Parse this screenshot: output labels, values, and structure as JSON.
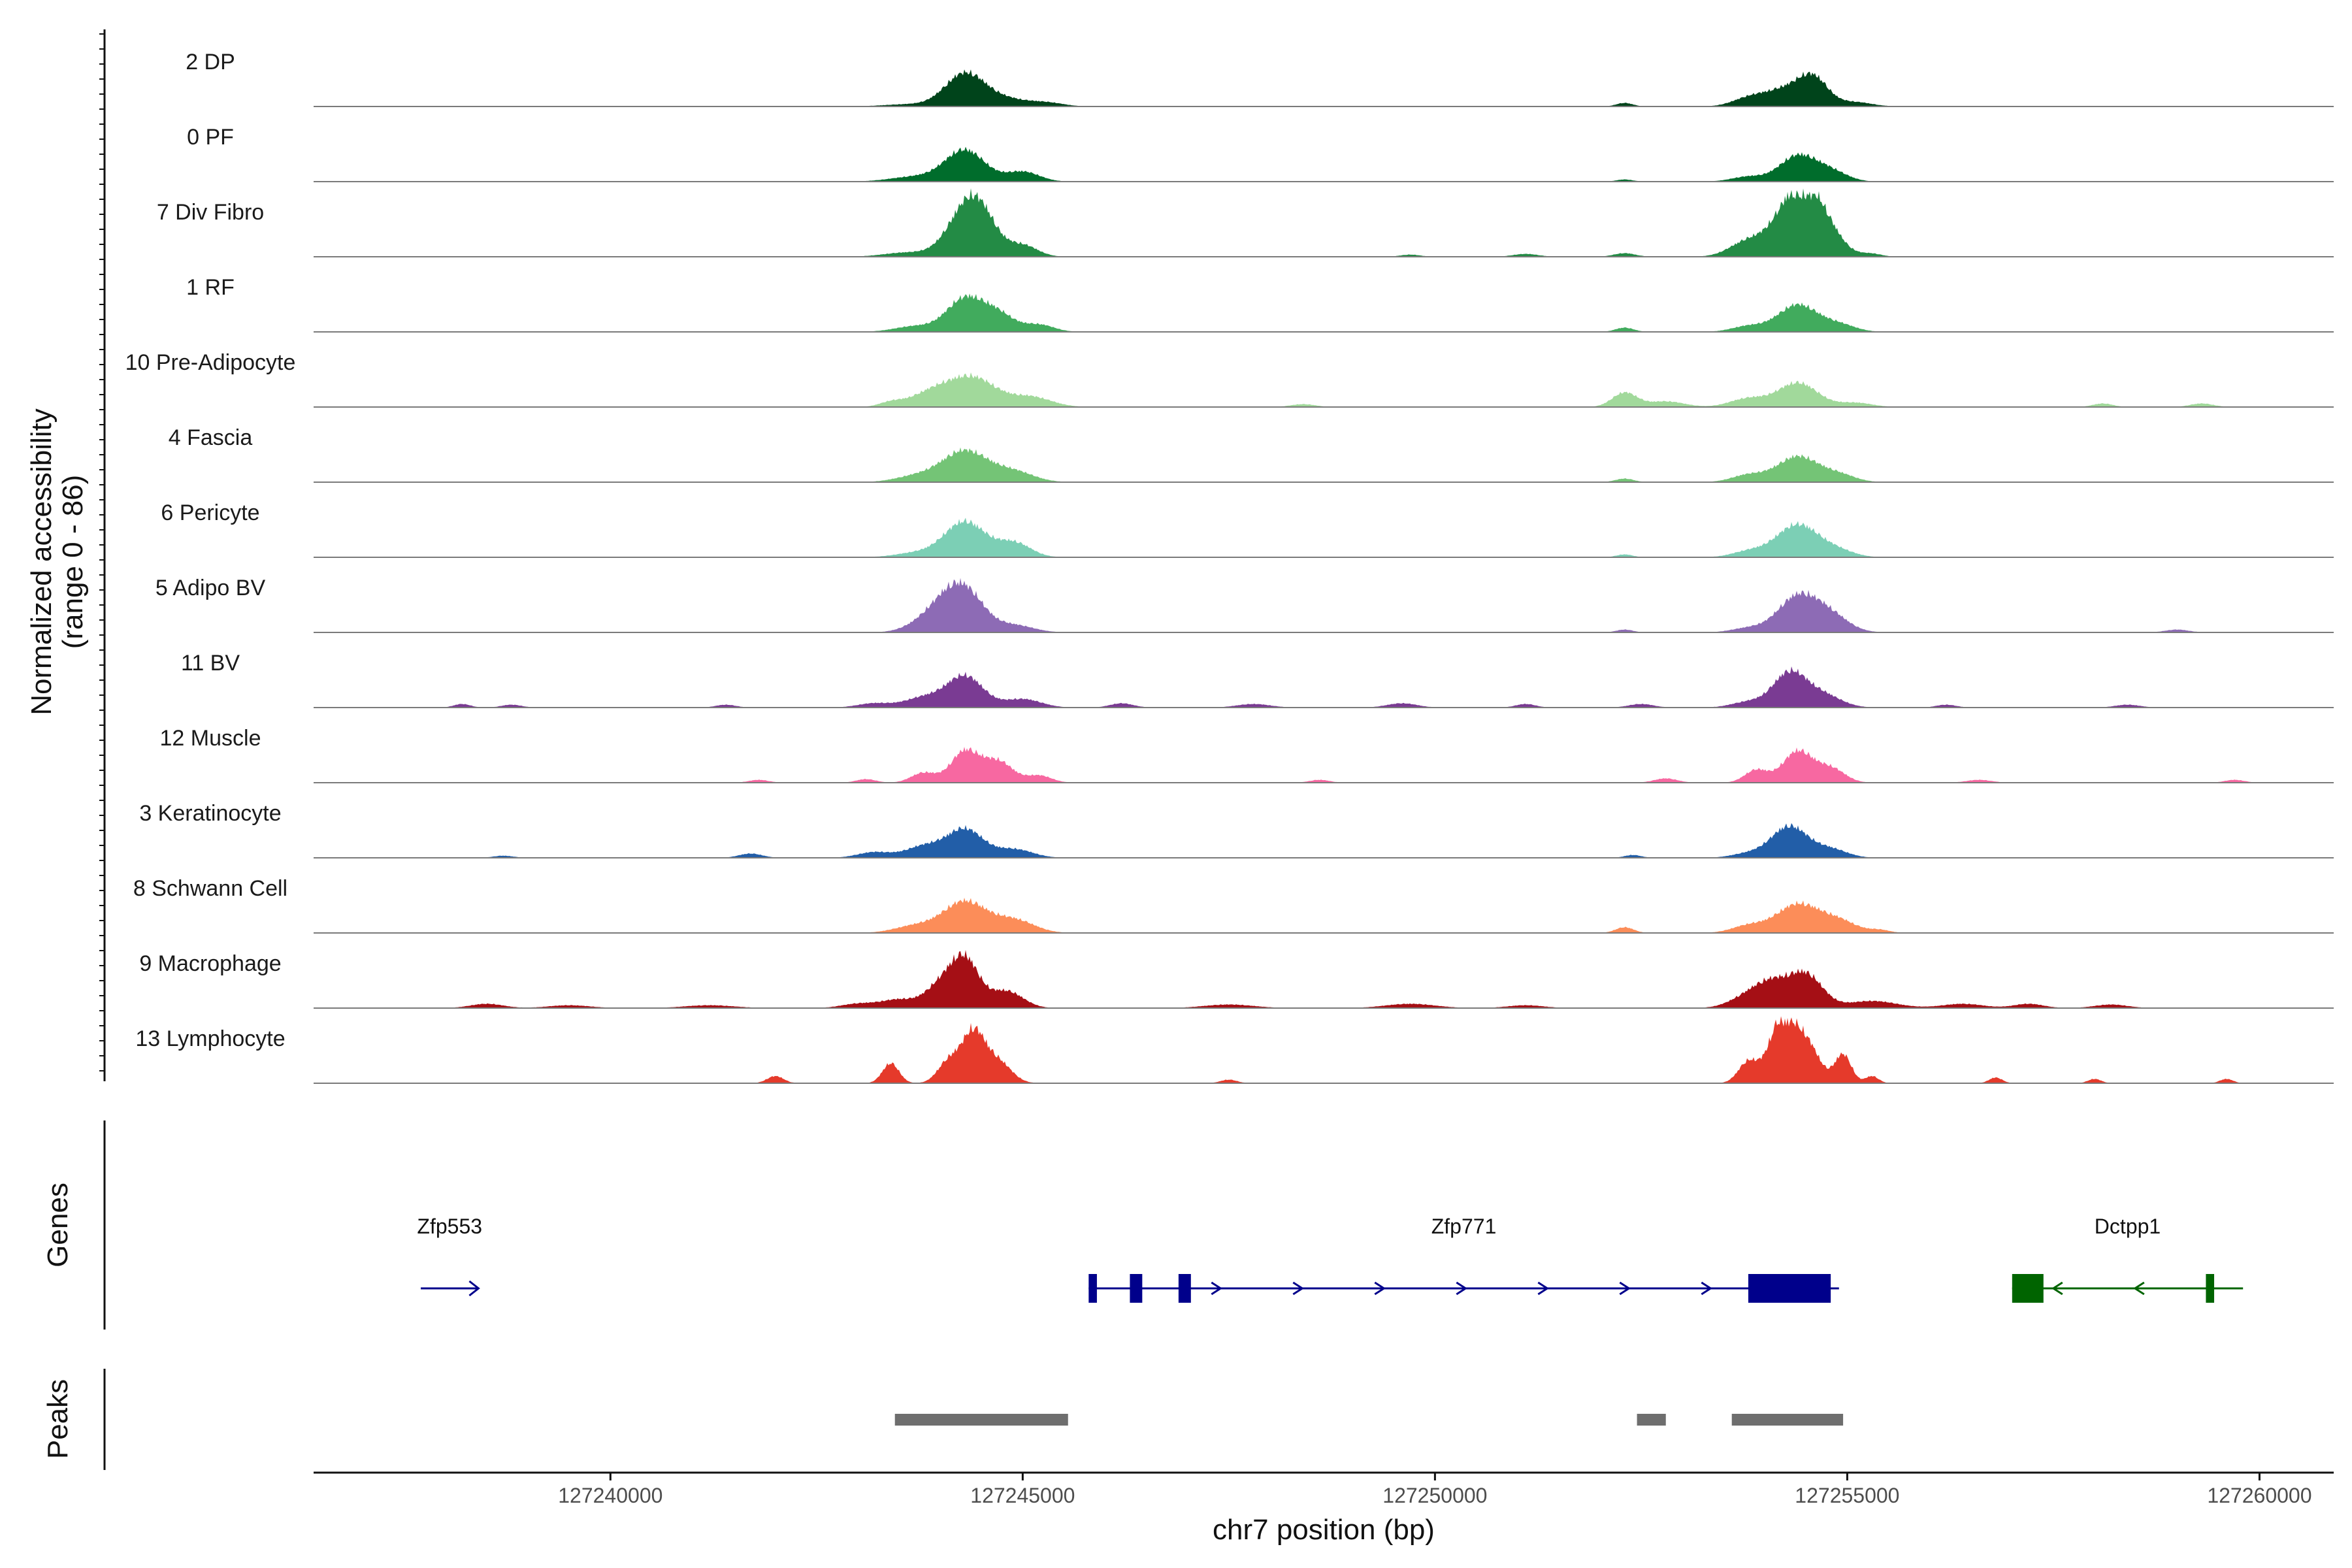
{
  "chart_data": {
    "type": "area",
    "title": "",
    "chromosome": "chr7",
    "xlabel": "chr7 position (bp)",
    "ylabel": "Normalized accessibility",
    "ylabel_range": "(range 0 - 86)",
    "xlim": [
      127236400,
      127260900
    ],
    "ylim": [
      0,
      86
    ],
    "x_ticks": [
      {
        "value": 127240000,
        "label": "127240000"
      },
      {
        "value": 127245000,
        "label": "127245000"
      },
      {
        "value": 127250000,
        "label": "127250000"
      },
      {
        "value": 127255000,
        "label": "127255000"
      },
      {
        "value": 127260000,
        "label": "127260000"
      }
    ],
    "series": [
      {
        "name": "2 DP",
        "color": "#00441b",
        "peaks": [
          [
            127244300,
            46,
            240
          ],
          [
            127244800,
            10,
            260
          ],
          [
            127245300,
            5,
            200
          ],
          [
            127243600,
            3,
            300
          ],
          [
            127252300,
            5,
            100
          ],
          [
            127254300,
            26,
            280
          ],
          [
            127254600,
            30,
            170
          ],
          [
            127253800,
            10,
            200
          ],
          [
            127255100,
            6,
            200
          ]
        ]
      },
      {
        "name": "0 PF",
        "color": "#006d2c",
        "peaks": [
          [
            127244300,
            44,
            240
          ],
          [
            127245000,
            14,
            200
          ],
          [
            127243700,
            7,
            300
          ],
          [
            127252300,
            3,
            100
          ],
          [
            127254400,
            36,
            220
          ],
          [
            127254800,
            14,
            200
          ],
          [
            127253800,
            7,
            200
          ]
        ]
      },
      {
        "name": "7 Div Fibro",
        "color": "#238b45",
        "peaks": [
          [
            127244300,
            56,
            230
          ],
          [
            127244500,
            40,
            200
          ],
          [
            127245000,
            16,
            180
          ],
          [
            127243600,
            6,
            280
          ],
          [
            127252300,
            5,
            130
          ],
          [
            127254300,
            56,
            220
          ],
          [
            127254600,
            70,
            240
          ],
          [
            127253800,
            22,
            220
          ],
          [
            127255300,
            4,
            120
          ],
          [
            127251100,
            4,
            150
          ],
          [
            127249700,
            3,
            120
          ]
        ]
      },
      {
        "name": "1 RF",
        "color": "#41ab5d",
        "peaks": [
          [
            127244300,
            46,
            220
          ],
          [
            127244700,
            24,
            200
          ],
          [
            127245200,
            10,
            180
          ],
          [
            127243700,
            8,
            250
          ],
          [
            127252300,
            6,
            110
          ],
          [
            127254400,
            38,
            240
          ],
          [
            127253800,
            8,
            200
          ],
          [
            127254900,
            10,
            200
          ]
        ]
      },
      {
        "name": "10 Pre-Adipocyte",
        "color": "#a1d99b",
        "peaks": [
          [
            127244400,
            40,
            280
          ],
          [
            127243900,
            20,
            260
          ],
          [
            127245100,
            14,
            250
          ],
          [
            127243400,
            6,
            140
          ],
          [
            127252300,
            20,
            150
          ],
          [
            127252800,
            8,
            220
          ],
          [
            127254400,
            34,
            240
          ],
          [
            127253800,
            12,
            220
          ],
          [
            127255100,
            6,
            200
          ],
          [
            127248400,
            4,
            150
          ],
          [
            127258100,
            5,
            120
          ],
          [
            127259300,
            5,
            140
          ]
        ]
      },
      {
        "name": "4 Fascia",
        "color": "#74c476",
        "peaks": [
          [
            127244300,
            44,
            280
          ],
          [
            127244900,
            14,
            240
          ],
          [
            127243700,
            8,
            250
          ],
          [
            127252300,
            5,
            110
          ],
          [
            127254400,
            36,
            250
          ],
          [
            127253800,
            10,
            200
          ],
          [
            127254900,
            10,
            200
          ]
        ]
      },
      {
        "name": "6 Pericyte",
        "color": "#7ccfb5",
        "peaks": [
          [
            127244300,
            50,
            250
          ],
          [
            127244900,
            20,
            200
          ],
          [
            127243700,
            6,
            250
          ],
          [
            127252300,
            4,
            100
          ],
          [
            127254400,
            46,
            260
          ],
          [
            127253800,
            8,
            200
          ],
          [
            127254900,
            8,
            200
          ]
        ]
      },
      {
        "name": "5 Adipo BV",
        "color": "#8d6bb5",
        "peaks": [
          [
            127244300,
            56,
            230
          ],
          [
            127244000,
            28,
            220
          ],
          [
            127244900,
            10,
            230
          ],
          [
            127243700,
            6,
            200
          ],
          [
            127252300,
            4,
            100
          ],
          [
            127254400,
            50,
            240
          ],
          [
            127254800,
            22,
            220
          ],
          [
            127253800,
            6,
            200
          ],
          [
            127259000,
            4,
            140
          ]
        ]
      },
      {
        "name": "11 BV",
        "color": "#7a3b93",
        "peaks": [
          [
            127244300,
            44,
            220
          ],
          [
            127243800,
            14,
            230
          ],
          [
            127245000,
            12,
            220
          ],
          [
            127243200,
            6,
            200
          ],
          [
            127254300,
            48,
            200
          ],
          [
            127254700,
            18,
            220
          ],
          [
            127253800,
            8,
            200
          ],
          [
            127238200,
            5,
            100
          ],
          [
            127238800,
            4,
            120
          ],
          [
            127241400,
            4,
            120
          ],
          [
            127246200,
            6,
            140
          ],
          [
            127247800,
            5,
            200
          ],
          [
            127249600,
            6,
            180
          ],
          [
            127251100,
            5,
            120
          ],
          [
            127252500,
            5,
            150
          ],
          [
            127256200,
            4,
            120
          ],
          [
            127258400,
            4,
            150
          ]
        ]
      },
      {
        "name": "12 Muscle",
        "color": "#f768a1",
        "peaks": [
          [
            127244300,
            44,
            170
          ],
          [
            127244700,
            30,
            180
          ],
          [
            127243800,
            14,
            150
          ],
          [
            127245200,
            10,
            150
          ],
          [
            127254400,
            44,
            180
          ],
          [
            127254800,
            20,
            170
          ],
          [
            127253900,
            18,
            140
          ],
          [
            127252800,
            6,
            140
          ],
          [
            127241800,
            4,
            120
          ],
          [
            127243100,
            5,
            120
          ],
          [
            127248600,
            4,
            120
          ],
          [
            127256600,
            4,
            150
          ],
          [
            127259700,
            4,
            120
          ]
        ]
      },
      {
        "name": "3 Keratinocyte",
        "color": "#225ea8",
        "peaks": [
          [
            127244300,
            40,
            220
          ],
          [
            127243800,
            16,
            220
          ],
          [
            127244900,
            12,
            220
          ],
          [
            127243200,
            8,
            200
          ],
          [
            127241700,
            6,
            140
          ],
          [
            127254300,
            44,
            220
          ],
          [
            127254800,
            12,
            200
          ],
          [
            127253800,
            6,
            200
          ],
          [
            127252400,
            4,
            100
          ],
          [
            127238700,
            3,
            120
          ]
        ]
      },
      {
        "name": "8 Schwann Cell",
        "color": "#fc8d59",
        "peaks": [
          [
            127244300,
            44,
            260
          ],
          [
            127244900,
            18,
            240
          ],
          [
            127243700,
            10,
            250
          ],
          [
            127252300,
            8,
            110
          ],
          [
            127254400,
            40,
            260
          ],
          [
            127254900,
            16,
            220
          ],
          [
            127253800,
            10,
            200
          ],
          [
            127255400,
            4,
            120
          ]
        ]
      },
      {
        "name": "9 Macrophage",
        "color": "#a50f15",
        "peaks": [
          [
            127244300,
            66,
            170
          ],
          [
            127244000,
            30,
            180
          ],
          [
            127244800,
            24,
            200
          ],
          [
            127243500,
            12,
            220
          ],
          [
            127243000,
            6,
            200
          ],
          [
            127254500,
            46,
            200
          ],
          [
            127254100,
            30,
            200
          ],
          [
            127253800,
            16,
            220
          ],
          [
            127255300,
            10,
            300
          ],
          [
            127256400,
            6,
            250
          ],
          [
            127238500,
            6,
            200
          ],
          [
            127239500,
            4,
            250
          ],
          [
            127241200,
            4,
            300
          ],
          [
            127247500,
            5,
            300
          ],
          [
            127249700,
            6,
            300
          ],
          [
            127251100,
            4,
            220
          ],
          [
            127257200,
            6,
            180
          ],
          [
            127258200,
            5,
            200
          ]
        ]
      },
      {
        "name": "13 Lymphocyte",
        "color": "#e53a2b",
        "peaks": [
          [
            127244400,
            70,
            140
          ],
          [
            127244100,
            30,
            130
          ],
          [
            127244700,
            30,
            160
          ],
          [
            127243400,
            28,
            100
          ],
          [
            127254200,
            86,
            150
          ],
          [
            127254500,
            56,
            160
          ],
          [
            127253800,
            30,
            120
          ],
          [
            127254950,
            40,
            100
          ],
          [
            127255300,
            10,
            80
          ],
          [
            127242000,
            10,
            100
          ],
          [
            127247500,
            5,
            100
          ],
          [
            127256800,
            8,
            80
          ],
          [
            127258000,
            6,
            80
          ],
          [
            127259600,
            6,
            80
          ]
        ]
      }
    ],
    "genes_track": {
      "label": "Genes",
      "genes": [
        {
          "name": "Zfp553",
          "start": 127237700,
          "end": 127238400,
          "strand": "+",
          "color": "#00008b",
          "exons": []
        },
        {
          "name": "Zfp771",
          "start": 127245800,
          "end": 127254900,
          "strand": "+",
          "color": "#00008b",
          "exons": [
            [
              127245800,
              127245900
            ],
            [
              127246300,
              127246450
            ],
            [
              127246890,
              127247040
            ],
            [
              127253800,
              127254800
            ]
          ]
        },
        {
          "name": "Dctpp1",
          "start": 127257000,
          "end": 127259800,
          "strand": "-",
          "color": "#006400",
          "exons": [
            [
              127257000,
              127257380
            ],
            [
              127259350,
              127259450
            ]
          ]
        }
      ]
    },
    "peaks_track": {
      "label": "Peaks",
      "color": "#6e6e6e",
      "regions": [
        [
          127243450,
          127245550
        ],
        [
          127252450,
          127252800
        ],
        [
          127253600,
          127254950
        ]
      ]
    }
  }
}
